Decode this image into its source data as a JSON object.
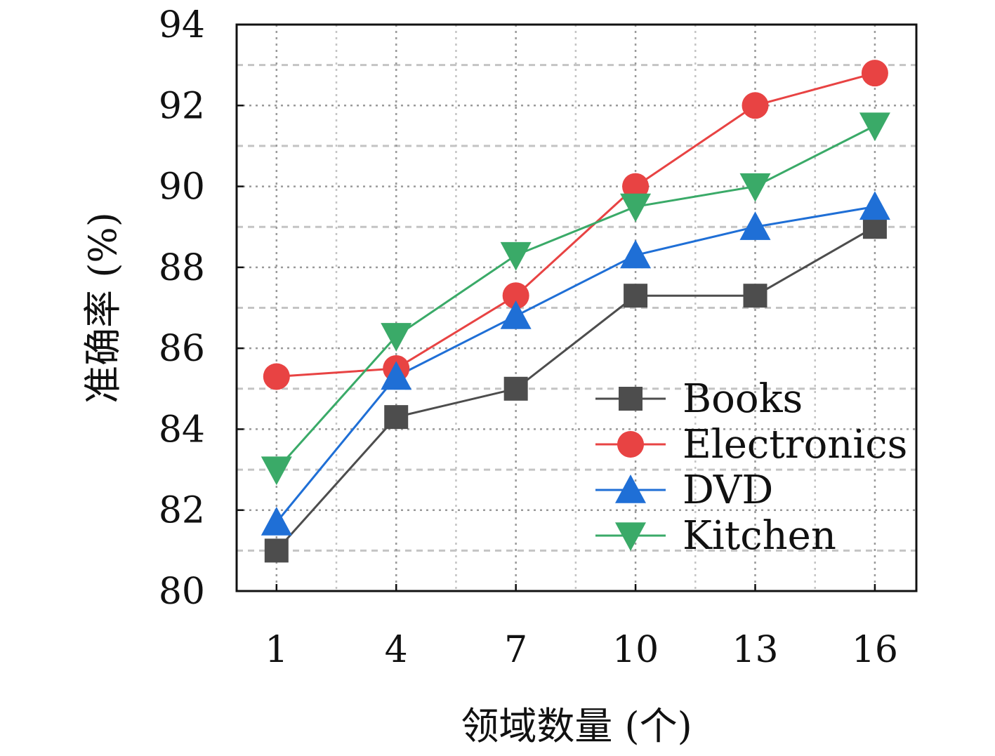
{
  "chart_data": {
    "type": "line",
    "title": "",
    "xlabel": "领域数量 (个)",
    "ylabel": "准确率 (%)",
    "x": [
      1,
      4,
      7,
      10,
      13,
      16
    ],
    "x_ticks": [
      "1",
      "4",
      "7",
      "10",
      "13",
      "16"
    ],
    "ylim": [
      80,
      94
    ],
    "y_ticks": [
      "80",
      "82",
      "84",
      "86",
      "88",
      "90",
      "92",
      "94"
    ],
    "grid": true,
    "legend_position": "bottom-right",
    "series": [
      {
        "name": "Books",
        "marker": "square",
        "color": "#4d4d4d",
        "values": [
          81.0,
          84.3,
          85.0,
          87.3,
          87.3,
          89.0
        ]
      },
      {
        "name": "Electronics",
        "marker": "circle",
        "color": "#e84343",
        "values": [
          85.3,
          85.5,
          87.3,
          90.0,
          92.0,
          92.8
        ]
      },
      {
        "name": "DVD",
        "marker": "triangle-up",
        "color": "#1f6fd6",
        "values": [
          81.7,
          85.3,
          86.8,
          88.3,
          89.0,
          89.5
        ]
      },
      {
        "name": "Kitchen",
        "marker": "triangle-down",
        "color": "#3aaa68",
        "values": [
          83.0,
          86.3,
          88.3,
          89.5,
          90.0,
          91.5
        ]
      }
    ]
  }
}
